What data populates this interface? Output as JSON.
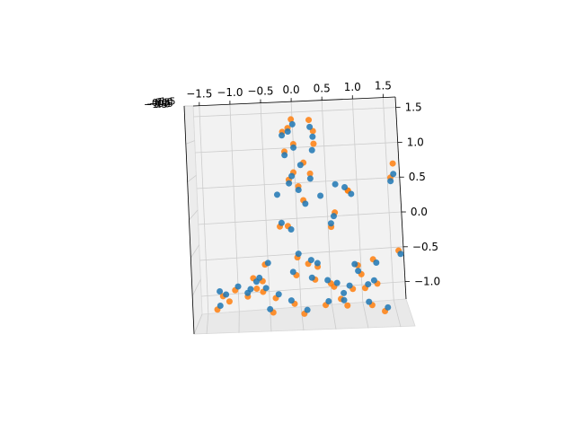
{
  "chart_data": {
    "type": "scatter",
    "projection": "3d",
    "title": "",
    "xlabel": "",
    "ylabel": "",
    "zlabel": "",
    "xlim": [
      -1.6,
      1.7
    ],
    "zlim": [
      -1.25,
      1.65
    ],
    "grid": true,
    "legend": "none",
    "x_ticks": [
      "−1.5",
      "−1.0",
      "−0.5",
      "0.0",
      "0.5",
      "1.0",
      "1.5"
    ],
    "y_ticks": [
      "−1.5",
      "−1.0",
      "−0.5",
      "0.0",
      "0.5",
      "1.0",
      "1.5"
    ],
    "z_ticks": [
      "−1.0",
      "−0.5",
      "0.0",
      "0.5",
      "1.0",
      "1.5"
    ],
    "colors": {
      "series_a": "#ff7f0e",
      "series_b": "#1f77b4",
      "pane": "#f2f2f2",
      "grid": "#cccccc"
    },
    "series": [
      {
        "values": [
          [
            -0.02,
            1.4
          ],
          [
            0.27,
            1.38
          ],
          [
            -0.08,
            1.28
          ],
          [
            0.33,
            1.22
          ],
          [
            -0.17,
            1.23
          ],
          [
            0.0,
            1.05
          ],
          [
            0.33,
            1.04
          ],
          [
            -0.15,
            0.95
          ],
          [
            0.15,
            0.78
          ],
          [
            -0.02,
            0.65
          ],
          [
            0.25,
            0.62
          ],
          [
            -0.1,
            0.55
          ],
          [
            0.05,
            0.45
          ],
          [
            1.6,
            0.7
          ],
          [
            0.85,
            0.35
          ],
          [
            1.55,
            0.5
          ],
          [
            0.85,
            0.35
          ],
          [
            0.12,
            0.25
          ],
          [
            0.62,
            0.05
          ],
          [
            -0.28,
            -0.1
          ],
          [
            -0.15,
            -0.1
          ],
          [
            0.55,
            -0.15
          ],
          [
            -0.02,
            -0.55
          ],
          [
            0.15,
            -0.65
          ],
          [
            0.3,
            -0.7
          ],
          [
            -0.55,
            -0.62
          ],
          [
            -0.6,
            -0.85
          ],
          [
            -0.75,
            -0.8
          ],
          [
            -0.7,
            -0.95
          ],
          [
            -1.05,
            -0.95
          ],
          [
            -1.15,
            -1.1
          ],
          [
            -1.25,
            -1.02
          ],
          [
            -0.85,
            -1.05
          ],
          [
            -0.6,
            -1.0
          ],
          [
            -0.4,
            -1.1
          ],
          [
            -0.45,
            -1.3
          ],
          [
            -0.05,
            -0.8
          ],
          [
            0.25,
            -0.88
          ],
          [
            0.5,
            -0.95
          ],
          [
            0.55,
            -1.0
          ],
          [
            0.4,
            -1.25
          ],
          [
            0.65,
            -1.18
          ],
          [
            0.85,
            -1.05
          ],
          [
            0.75,
            -1.28
          ],
          [
            1.05,
            -1.05
          ],
          [
            1.25,
            -1.0
          ],
          [
            1.15,
            -1.3
          ],
          [
            1.35,
            -1.4
          ],
          [
            0.95,
            -0.72
          ],
          [
            1.2,
            -0.65
          ],
          [
            1.62,
            -0.55
          ],
          [
            0.05,
            -1.35
          ],
          [
            -0.1,
            -1.2
          ],
          [
            -1.35,
            -1.2
          ],
          [
            1.0,
            -0.85
          ]
        ]
      },
      {
        "values": [
          [
            0.0,
            1.33
          ],
          [
            -0.08,
            1.23
          ],
          [
            0.28,
            1.28
          ],
          [
            -0.18,
            1.18
          ],
          [
            0.32,
            1.14
          ],
          [
            0.0,
            1.0
          ],
          [
            0.3,
            0.95
          ],
          [
            -0.15,
            0.9
          ],
          [
            0.1,
            0.75
          ],
          [
            -0.05,
            0.6
          ],
          [
            0.25,
            0.55
          ],
          [
            -0.1,
            0.5
          ],
          [
            0.05,
            0.4
          ],
          [
            1.55,
            0.45
          ],
          [
            0.9,
            0.3
          ],
          [
            1.6,
            0.55
          ],
          [
            0.8,
            0.4
          ],
          [
            0.15,
            0.2
          ],
          [
            0.6,
            0.0
          ],
          [
            -0.25,
            -0.05
          ],
          [
            -0.1,
            -0.15
          ],
          [
            0.55,
            -0.1
          ],
          [
            0.0,
            -0.5
          ],
          [
            0.2,
            -0.6
          ],
          [
            0.3,
            -0.65
          ],
          [
            -0.5,
            -0.6
          ],
          [
            -0.65,
            -0.8
          ],
          [
            -0.7,
            -0.85
          ],
          [
            -0.8,
            -0.95
          ],
          [
            -1.0,
            -0.9
          ],
          [
            -1.2,
            -1.0
          ],
          [
            -1.3,
            -0.95
          ],
          [
            -0.85,
            -1.0
          ],
          [
            -0.55,
            -0.95
          ],
          [
            -0.35,
            -1.05
          ],
          [
            -0.5,
            -1.25
          ],
          [
            -0.1,
            -0.75
          ],
          [
            0.2,
            -0.85
          ],
          [
            0.45,
            -0.9
          ],
          [
            0.6,
            -0.95
          ],
          [
            0.45,
            -1.2
          ],
          [
            0.7,
            -1.1
          ],
          [
            0.8,
            -1.0
          ],
          [
            0.7,
            -1.2
          ],
          [
            1.1,
            -1.0
          ],
          [
            1.2,
            -0.95
          ],
          [
            1.1,
            -1.25
          ],
          [
            1.4,
            -1.35
          ],
          [
            0.9,
            -0.7
          ],
          [
            1.25,
            -0.7
          ],
          [
            1.65,
            -0.6
          ],
          [
            0.1,
            -1.3
          ],
          [
            -0.15,
            -1.15
          ],
          [
            -1.3,
            -1.15
          ],
          [
            0.95,
            -0.8
          ],
          [
            0.65,
            0.45
          ],
          [
            -0.3,
            0.35
          ],
          [
            0.4,
            0.3
          ]
        ]
      }
    ]
  }
}
